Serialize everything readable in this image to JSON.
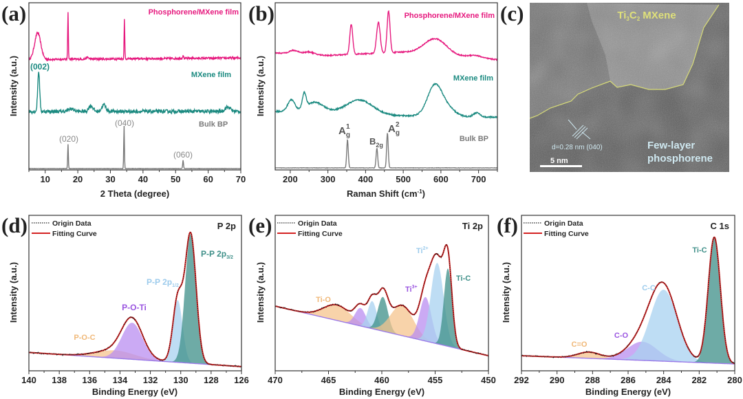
{
  "panel_labels": [
    "(a)",
    "(b)",
    "(c)",
    "(d)",
    "(e)",
    "(f)"
  ],
  "colors": {
    "phosphorene_mxene": "#e6197e",
    "mxene": "#1b8a80",
    "bulk_bp": "#7a7a7a",
    "fit": "#d42222",
    "orange": "#f6c48e",
    "purple": "#b98ef0",
    "lightblue": "#a8d2f0",
    "teal": "#3e8f88"
  },
  "tem_image": {
    "mxene_label": {
      "a": "Ti",
      "a_sub": "3",
      "b": "C",
      "b_sub": "2",
      "c": " MXene"
    },
    "d_spacing": "d=0.28 nm (040)",
    "scale_bar": "5 nm",
    "region_label_1": "Few-layer",
    "region_label_2": "phosphorene"
  },
  "chart_data": [
    {
      "type": "line",
      "xlabel": "2 Theta (degree)",
      "ylabel": "Intensity (a.u.)",
      "xlim": [
        5,
        70
      ],
      "ylim": [
        0,
        10
      ],
      "xticks": [
        10,
        20,
        30,
        40,
        50,
        60,
        70
      ],
      "grid": false,
      "series": [
        {
          "name": "Phosphorene/MXene film",
          "color": "#e6197e",
          "baseline": [
            [
              5,
              6.6
            ],
            [
              70,
              6.7
            ]
          ],
          "peaks": [
            {
              "center": 7.7,
              "height": 1.6,
              "fwhm": 2.2
            },
            {
              "center": 17,
              "height": 2.85,
              "fwhm": 0.25
            },
            {
              "center": 34.3,
              "height": 2.35,
              "fwhm": 0.25
            },
            {
              "center": 52.3,
              "height": 0.2,
              "fwhm": 0.3
            },
            {
              "center": 23,
              "height": 0.1,
              "fwhm": 1
            }
          ]
        },
        {
          "name": "MXene film",
          "color": "#1b8a80",
          "baseline": [
            [
              5,
              3.5
            ],
            [
              70,
              3.5
            ]
          ],
          "peaks": [
            {
              "center": 8,
              "height": 2.4,
              "fwhm": 0.7
            },
            {
              "center": 24,
              "height": 0.35,
              "fwhm": 1.5
            },
            {
              "center": 28,
              "height": 0.4,
              "fwhm": 1.5
            },
            {
              "center": 18,
              "height": 0.15,
              "fwhm": 2
            },
            {
              "center": 66,
              "height": 0.25,
              "fwhm": 2
            }
          ]
        },
        {
          "name": "Bulk BP",
          "color": "#7a7a7a",
          "baseline": [
            [
              5,
              0.08
            ],
            [
              70,
              0.08
            ]
          ],
          "peaks": [
            {
              "center": 17,
              "height": 1.45,
              "fwhm": 0.25
            },
            {
              "center": 34.2,
              "height": 2.55,
              "fwhm": 0.25
            },
            {
              "center": 52.3,
              "height": 0.5,
              "fwhm": 0.3
            }
          ]
        }
      ],
      "annotations": [
        {
          "text": "(002)"
        },
        {
          "text": "(020)"
        },
        {
          "text": "(040)"
        },
        {
          "text": "(060)"
        }
      ]
    },
    {
      "type": "line",
      "xlabel": {
        "base": "Raman Shift (cm",
        "sup": "-1",
        "tail": ")"
      },
      "ylabel": "Intensity (a.u.)",
      "xlim": [
        160,
        750
      ],
      "ylim": [
        0,
        10
      ],
      "xticks": [
        200,
        300,
        400,
        500,
        600,
        700
      ],
      "grid": false,
      "series": [
        {
          "name": "Phosphorene/MXene film",
          "color": "#e6197e",
          "baseline": [
            [
              160,
              7.0
            ],
            [
              300,
              6.85
            ],
            [
              500,
              7.05
            ],
            [
              750,
              6.6
            ]
          ],
          "peaks": [
            {
              "center": 210,
              "height": 0.2,
              "fwhm": 30
            },
            {
              "center": 250,
              "height": 0.15,
              "fwhm": 30
            },
            {
              "center": 362,
              "height": 1.8,
              "fwhm": 9
            },
            {
              "center": 434,
              "height": 1.85,
              "fwhm": 11
            },
            {
              "center": 461,
              "height": 2.5,
              "fwhm": 9
            },
            {
              "center": 585,
              "height": 0.95,
              "fwhm": 70
            },
            {
              "center": 690,
              "height": 0.15,
              "fwhm": 40
            }
          ]
        },
        {
          "name": "MXene film",
          "color": "#1b8a80",
          "baseline": [
            [
              160,
              3.5
            ],
            [
              300,
              3.5
            ],
            [
              480,
              3.25
            ],
            [
              750,
              3.15
            ]
          ],
          "peaks": [
            {
              "center": 203,
              "height": 0.7,
              "fwhm": 22
            },
            {
              "center": 237,
              "height": 0.9,
              "fwhm": 12
            },
            {
              "center": 265,
              "height": 0.55,
              "fwhm": 50
            },
            {
              "center": 385,
              "height": 0.8,
              "fwhm": 80
            },
            {
              "center": 583,
              "height": 1.75,
              "fwhm": 45
            },
            {
              "center": 615,
              "height": 0.5,
              "fwhm": 50
            },
            {
              "center": 695,
              "height": 0.25,
              "fwhm": 20
            }
          ]
        },
        {
          "name": "Bulk BP",
          "color": "#7a7a7a",
          "baseline": [
            [
              160,
              0.12
            ],
            [
              750,
              0.12
            ]
          ],
          "peaks": [
            {
              "center": 352,
              "height": 1.7,
              "fwhm": 5
            },
            {
              "center": 430,
              "height": 1.18,
              "fwhm": 5
            },
            {
              "center": 458,
              "height": 2.1,
              "fwhm": 5
            }
          ]
        }
      ],
      "annotations": [
        {
          "base": "A",
          "sub": "g",
          "sup": "1"
        },
        {
          "base": "B",
          "sub": "2g"
        },
        {
          "base": "A",
          "sub": "g",
          "sup": "2"
        }
      ]
    },
    {
      "type": "xps",
      "title": "P 2p",
      "xlabel": "Binding Energy (eV)",
      "ylabel": "Intensity (a.u.)",
      "xlim": [
        140,
        126
      ],
      "ylim": [
        0,
        10
      ],
      "xticks": [
        140,
        138,
        136,
        134,
        132,
        130,
        128,
        126
      ],
      "legend": [
        "Origin Data",
        "Fitting Curve"
      ],
      "legend_position": "top-left",
      "background": [
        [
          140,
          1.18
        ],
        [
          126,
          0.27
        ]
      ],
      "components": [
        {
          "species": "P-O-C",
          "center": 134.3,
          "height": 0.5,
          "fwhm": 3.0,
          "color": "#f6c48e"
        },
        {
          "species": "P-O-Ti",
          "center": 133.2,
          "height": 2.35,
          "fwhm": 1.6,
          "color": "#b98ef0"
        },
        {
          "species": "P-P 2p1/2",
          "center": 130.2,
          "height": 4.0,
          "fwhm": 0.75,
          "color": "#a8d2f0"
        },
        {
          "species": "P-P 2p3/2",
          "center": 129.35,
          "height": 8.3,
          "fwhm": 0.85,
          "color": "#3e8f88"
        }
      ],
      "annotations": [
        {
          "text": "P-O-C"
        },
        {
          "text": "P-O-Ti"
        },
        {
          "base": "P-P 2p",
          "sub": "1/2"
        },
        {
          "base": "P-P 2p",
          "sub": "3/2"
        }
      ]
    },
    {
      "type": "xps",
      "title": "Ti 2p",
      "xlabel": "Binding Energy (eV)",
      "ylabel": "Intensity (a.u.)",
      "xlim": [
        470,
        450
      ],
      "ylim": [
        0,
        10
      ],
      "xticks": [
        470,
        465,
        460,
        455,
        450
      ],
      "legend": [
        "Origin Data",
        "Fitting Curve"
      ],
      "legend_position": "top-left",
      "background": [
        [
          470,
          4.16
        ],
        [
          450,
          0.97
        ]
      ],
      "components": [
        {
          "species": "Ti-O",
          "center": 464.2,
          "height": 1.0,
          "fwhm": 3.0,
          "color": "#f6c48e"
        },
        {
          "species": "Ti3+",
          "center": 462.0,
          "height": 1.15,
          "fwhm": 1.2,
          "color": "#b98ef0"
        },
        {
          "species": "Ti2+",
          "center": 460.9,
          "height": 1.77,
          "fwhm": 1.0,
          "color": "#a8d2f0"
        },
        {
          "species": "Ti-C",
          "center": 459.9,
          "height": 2.2,
          "fwhm": 1.1,
          "color": "#3e8f88"
        },
        {
          "species": "Ti-O",
          "center": 458.1,
          "height": 1.95,
          "fwhm": 2.5,
          "color": "#f6c48e"
        },
        {
          "species": "Ti3+",
          "center": 455.9,
          "height": 2.83,
          "fwhm": 1.3,
          "color": "#b98ef0"
        },
        {
          "species": "Ti2+",
          "center": 454.8,
          "height": 5.2,
          "fwhm": 1.4,
          "color": "#a8d2f0"
        },
        {
          "species": "Ti-C",
          "center": 453.8,
          "height": 5.0,
          "fwhm": 0.9,
          "color": "#3e8f88"
        }
      ],
      "annotations": [
        {
          "text": "Ti-O"
        },
        {
          "base": "Ti",
          "sup": "3+"
        },
        {
          "base": "Ti",
          "sup": "2+"
        },
        {
          "text": "Ti-C"
        }
      ]
    },
    {
      "type": "xps",
      "title": "C 1s",
      "xlabel": "Binding Energy (eV)",
      "ylabel": "Intensity (a.u.)",
      "xlim": [
        292,
        280
      ],
      "ylim": [
        0,
        10
      ],
      "xticks": [
        292,
        290,
        288,
        286,
        284,
        282,
        280
      ],
      "legend": [
        "Origin Data",
        "Fitting Curve"
      ],
      "legend_position": "top-left",
      "background": [
        [
          292,
          0.97
        ],
        [
          280,
          0.44
        ]
      ],
      "components": [
        {
          "species": "C=O",
          "center": 288.2,
          "height": 0.4,
          "fwhm": 1.5,
          "color": "#f6c48e"
        },
        {
          "species": "C-O",
          "center": 285.2,
          "height": 1.2,
          "fwhm": 2.0,
          "color": "#b98ef0"
        },
        {
          "species": "C-C",
          "center": 284.0,
          "height": 4.6,
          "fwhm": 1.8,
          "color": "#a8d2f0"
        },
        {
          "species": "Ti-C",
          "center": 281.15,
          "height": 8.1,
          "fwhm": 0.8,
          "color": "#3e8f88"
        }
      ],
      "annotations": [
        {
          "text": "C=O"
        },
        {
          "text": "C-O"
        },
        {
          "text": "C-C"
        },
        {
          "text": "Ti-C"
        }
      ]
    }
  ]
}
